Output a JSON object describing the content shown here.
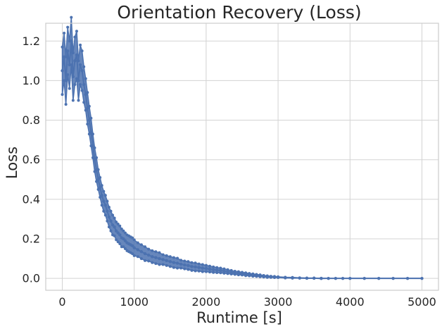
{
  "chart_data": {
    "type": "line",
    "title": "Orientation Recovery (Loss)",
    "xlabel": "Runtime [s]",
    "ylabel": "Loss",
    "xlim": [
      -230,
      5230
    ],
    "ylim": [
      -0.06,
      1.29
    ],
    "xticks": [
      0,
      1000,
      2000,
      3000,
      4000,
      5000
    ],
    "xtick_labels": [
      "0",
      "1000",
      "2000",
      "3000",
      "4000",
      "5000"
    ],
    "yticks": [
      0.0,
      0.2,
      0.4,
      0.6,
      0.8,
      1.0,
      1.2
    ],
    "ytick_labels": [
      "0.0",
      "0.2",
      "0.4",
      "0.6",
      "0.8",
      "1.0",
      "1.2"
    ],
    "grid": true,
    "legend": "none",
    "colors": {
      "series": "#4c72b0",
      "grid": "#d3d3d3",
      "text": "#262626"
    },
    "series": [
      {
        "marker": "dot",
        "x": [
          0,
          25,
          50,
          75,
          100,
          125,
          150,
          175,
          200,
          225,
          250,
          275,
          300,
          325,
          350,
          375,
          400,
          425,
          450,
          475,
          500,
          525,
          550,
          575,
          600,
          625,
          650,
          675,
          700,
          725,
          750,
          775,
          800,
          825,
          850,
          875,
          900,
          925,
          950,
          975,
          1000,
          1050,
          1100,
          1150,
          1200,
          1250,
          1300,
          1350,
          1400,
          1450,
          1500,
          1550,
          1600,
          1650,
          1700,
          1750,
          1800,
          1850,
          1900,
          1950,
          2000,
          2050,
          2100,
          2150,
          2200,
          2250,
          2300,
          2350,
          2400,
          2450,
          2500,
          2550,
          2600,
          2650,
          2700,
          2750,
          2800,
          2850,
          2900,
          2950,
          3000,
          3100,
          3200,
          3300,
          3400,
          3500,
          3600,
          3700,
          3800,
          3900,
          4000,
          4200,
          4400,
          4600,
          4800,
          5000
        ],
        "y": [
          1.05,
          1.12,
          1.0,
          1.15,
          1.08,
          1.2,
          1.02,
          1.1,
          1.13,
          1.0,
          1.08,
          1.05,
          0.98,
          0.93,
          0.86,
          0.8,
          0.74,
          0.67,
          0.6,
          0.55,
          0.5,
          0.46,
          0.42,
          0.39,
          0.37,
          0.34,
          0.31,
          0.29,
          0.27,
          0.26,
          0.24,
          0.23,
          0.22,
          0.205,
          0.2,
          0.19,
          0.18,
          0.175,
          0.17,
          0.165,
          0.155,
          0.145,
          0.135,
          0.125,
          0.118,
          0.11,
          0.105,
          0.1,
          0.095,
          0.09,
          0.085,
          0.08,
          0.077,
          0.072,
          0.068,
          0.065,
          0.06,
          0.058,
          0.055,
          0.052,
          0.05,
          0.047,
          0.044,
          0.042,
          0.04,
          0.037,
          0.034,
          0.031,
          0.028,
          0.026,
          0.024,
          0.021,
          0.019,
          0.017,
          0.015,
          0.013,
          0.011,
          0.009,
          0.008,
          0.007,
          0.006,
          0.004,
          0.003,
          0.002,
          0.001,
          0.001,
          0.0,
          0.0,
          0.0,
          0.0,
          0.0,
          0.0,
          0.0,
          0.0,
          0.0,
          0.0
        ],
        "noise_band": [
          0.12,
          0.12,
          0.12,
          0.12,
          0.12,
          0.12,
          0.12,
          0.12,
          0.12,
          0.1,
          0.1,
          0.1,
          0.09,
          0.08,
          0.08,
          0.07,
          0.07,
          0.06,
          0.06,
          0.06,
          0.05,
          0.05,
          0.05,
          0.05,
          0.05,
          0.05,
          0.05,
          0.05,
          0.05,
          0.045,
          0.045,
          0.045,
          0.045,
          0.045,
          0.04,
          0.04,
          0.04,
          0.04,
          0.04,
          0.04,
          0.04,
          0.035,
          0.035,
          0.035,
          0.03,
          0.03,
          0.03,
          0.03,
          0.025,
          0.025,
          0.025,
          0.025,
          0.025,
          0.02,
          0.02,
          0.02,
          0.02,
          0.02,
          0.018,
          0.018,
          0.016,
          0.015,
          0.014,
          0.013,
          0.012,
          0.011,
          0.01,
          0.009,
          0.008,
          0.008,
          0.007,
          0.007,
          0.006,
          0.006,
          0.005,
          0.005,
          0.004,
          0.004,
          0.003,
          0.003,
          0.002,
          0.002,
          0.002,
          0.001,
          0.001,
          0.001,
          0.001,
          0.0,
          0.0,
          0.0,
          0.0,
          0.0,
          0.0,
          0.0,
          0.0,
          0.0
        ]
      }
    ]
  }
}
